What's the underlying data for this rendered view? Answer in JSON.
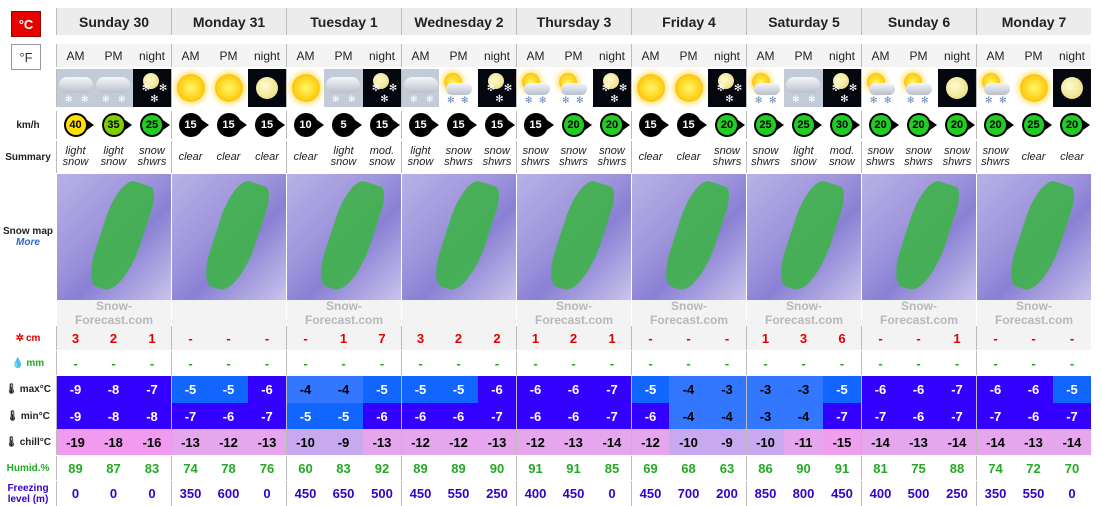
{
  "units": {
    "celsius": "°C",
    "fahrenheit": "°F"
  },
  "days": [
    {
      "name": "Sunday 30",
      "periods": [
        "AM",
        "PM",
        "night"
      ],
      "icons": [
        "cloud-snow",
        "cloud-snow",
        "moon-snow"
      ],
      "wind": [
        "40",
        "35",
        "25"
      ],
      "wind_colors": [
        "#ffe000",
        "#7fd000",
        "#22cc22"
      ],
      "summary": [
        "light snow",
        "light snow",
        "snow shwrs"
      ],
      "snow_cm": [
        "3",
        "2",
        "1"
      ],
      "rain_mm": [
        "-",
        "-",
        "-"
      ],
      "max_c": [
        "-9",
        "-8",
        "-7"
      ],
      "min_c": [
        "-9",
        "-8",
        "-8"
      ],
      "chill_c": [
        "-19",
        "-18",
        "-16"
      ],
      "humid": [
        "89",
        "87",
        "83"
      ],
      "freezing": [
        "0",
        "0",
        "0"
      ]
    },
    {
      "name": "Monday 31",
      "periods": [
        "AM",
        "PM",
        "night"
      ],
      "icons": [
        "sun",
        "sun",
        "moon"
      ],
      "wind": [
        "15",
        "15",
        "15"
      ],
      "wind_colors": [
        "#000",
        "#000",
        "#000"
      ],
      "summary": [
        "clear",
        "clear",
        "clear"
      ],
      "snow_cm": [
        "-",
        "-",
        "-"
      ],
      "rain_mm": [
        "-",
        "-",
        "-"
      ],
      "max_c": [
        "-5",
        "-5",
        "-6"
      ],
      "min_c": [
        "-7",
        "-6",
        "-7"
      ],
      "chill_c": [
        "-13",
        "-12",
        "-13"
      ],
      "humid": [
        "74",
        "78",
        "76"
      ],
      "freezing": [
        "350",
        "600",
        "0"
      ]
    },
    {
      "name": "Tuesday 1",
      "periods": [
        "AM",
        "PM",
        "night"
      ],
      "icons": [
        "sun",
        "cloud-snow",
        "moon-snow"
      ],
      "wind": [
        "10",
        "5",
        "15"
      ],
      "wind_colors": [
        "#000",
        "#000",
        "#000"
      ],
      "summary": [
        "clear",
        "light snow",
        "mod. snow"
      ],
      "snow_cm": [
        "-",
        "1",
        "7"
      ],
      "rain_mm": [
        "-",
        "-",
        "-"
      ],
      "max_c": [
        "-4",
        "-4",
        "-5"
      ],
      "min_c": [
        "-5",
        "-5",
        "-6"
      ],
      "chill_c": [
        "-10",
        "-9",
        "-13"
      ],
      "humid": [
        "60",
        "83",
        "92"
      ],
      "freezing": [
        "450",
        "650",
        "500"
      ]
    },
    {
      "name": "Wednesday 2",
      "periods": [
        "AM",
        "PM",
        "night"
      ],
      "icons": [
        "cloud-snow",
        "sun-snow",
        "moon-snow"
      ],
      "wind": [
        "15",
        "15",
        "15"
      ],
      "wind_colors": [
        "#000",
        "#000",
        "#000"
      ],
      "summary": [
        "light snow",
        "snow shwrs",
        "snow shwrs"
      ],
      "snow_cm": [
        "3",
        "2",
        "2"
      ],
      "rain_mm": [
        "-",
        "-",
        "-"
      ],
      "max_c": [
        "-5",
        "-5",
        "-6"
      ],
      "min_c": [
        "-6",
        "-6",
        "-7"
      ],
      "chill_c": [
        "-12",
        "-12",
        "-13"
      ],
      "humid": [
        "89",
        "89",
        "90"
      ],
      "freezing": [
        "450",
        "550",
        "250"
      ]
    },
    {
      "name": "Thursday 3",
      "periods": [
        "AM",
        "PM",
        "night"
      ],
      "icons": [
        "sun-snow",
        "sun-snow",
        "moon-snow"
      ],
      "wind": [
        "15",
        "20",
        "20"
      ],
      "wind_colors": [
        "#000",
        "#22cc22",
        "#22cc22"
      ],
      "summary": [
        "snow shwrs",
        "snow shwrs",
        "snow shwrs"
      ],
      "snow_cm": [
        "1",
        "2",
        "1"
      ],
      "rain_mm": [
        "-",
        "-",
        "-"
      ],
      "max_c": [
        "-6",
        "-6",
        "-7"
      ],
      "min_c": [
        "-6",
        "-6",
        "-7"
      ],
      "chill_c": [
        "-12",
        "-13",
        "-14"
      ],
      "humid": [
        "91",
        "91",
        "85"
      ],
      "freezing": [
        "400",
        "450",
        "0"
      ]
    },
    {
      "name": "Friday 4",
      "periods": [
        "AM",
        "PM",
        "night"
      ],
      "icons": [
        "sun",
        "sun",
        "moon-snow"
      ],
      "wind": [
        "15",
        "15",
        "20"
      ],
      "wind_colors": [
        "#000",
        "#000",
        "#22cc22"
      ],
      "summary": [
        "clear",
        "clear",
        "snow shwrs"
      ],
      "snow_cm": [
        "-",
        "-",
        "-"
      ],
      "rain_mm": [
        "-",
        "-",
        "-"
      ],
      "max_c": [
        "-5",
        "-4",
        "-3"
      ],
      "min_c": [
        "-6",
        "-4",
        "-4"
      ],
      "chill_c": [
        "-12",
        "-10",
        "-9"
      ],
      "humid": [
        "69",
        "68",
        "63"
      ],
      "freezing": [
        "450",
        "700",
        "200"
      ]
    },
    {
      "name": "Saturday 5",
      "periods": [
        "AM",
        "PM",
        "night"
      ],
      "icons": [
        "sun-snow",
        "cloud-snow",
        "moon-snow"
      ],
      "wind": [
        "25",
        "25",
        "30"
      ],
      "wind_colors": [
        "#22cc22",
        "#22cc22",
        "#22cc22"
      ],
      "summary": [
        "snow shwrs",
        "light snow",
        "mod. snow"
      ],
      "snow_cm": [
        "1",
        "3",
        "6"
      ],
      "rain_mm": [
        "-",
        "-",
        "-"
      ],
      "max_c": [
        "-3",
        "-3",
        "-5"
      ],
      "min_c": [
        "-3",
        "-4",
        "-7"
      ],
      "chill_c": [
        "-10",
        "-11",
        "-15"
      ],
      "humid": [
        "86",
        "90",
        "91"
      ],
      "freezing": [
        "850",
        "800",
        "450"
      ]
    },
    {
      "name": "Sunday 6",
      "periods": [
        "AM",
        "PM",
        "night"
      ],
      "icons": [
        "sun-snow",
        "sun-snow",
        "moon"
      ],
      "wind": [
        "20",
        "20",
        "20"
      ],
      "wind_colors": [
        "#22cc22",
        "#22cc22",
        "#22cc22"
      ],
      "summary": [
        "snow shwrs",
        "snow shwrs",
        "snow shwrs"
      ],
      "snow_cm": [
        "-",
        "-",
        "1"
      ],
      "rain_mm": [
        "-",
        "-",
        "-"
      ],
      "max_c": [
        "-6",
        "-6",
        "-7"
      ],
      "min_c": [
        "-7",
        "-6",
        "-7"
      ],
      "chill_c": [
        "-14",
        "-13",
        "-14"
      ],
      "humid": [
        "81",
        "75",
        "88"
      ],
      "freezing": [
        "400",
        "500",
        "250"
      ]
    },
    {
      "name": "Monday 7",
      "periods": [
        "AM",
        "PM",
        "night"
      ],
      "icons": [
        "sun-snow",
        "sun",
        "moon"
      ],
      "wind": [
        "20",
        "25",
        "20"
      ],
      "wind_colors": [
        "#22cc22",
        "#22cc22",
        "#22cc22"
      ],
      "summary": [
        "snow shwrs",
        "clear",
        "clear"
      ],
      "snow_cm": [
        "-",
        "-",
        "-"
      ],
      "rain_mm": [
        "-",
        "-",
        "-"
      ],
      "max_c": [
        "-6",
        "-6",
        "-5"
      ],
      "min_c": [
        "-7",
        "-6",
        "-7"
      ],
      "chill_c": [
        "-14",
        "-13",
        "-14"
      ],
      "humid": [
        "74",
        "72",
        "70"
      ],
      "freezing": [
        "350",
        "550",
        "0"
      ]
    }
  ],
  "labels": {
    "wind": "km/h",
    "summary": "Summary",
    "snow_map": "Snow map",
    "more": "More",
    "snow": "cm",
    "rain": "mm",
    "max": "max°C",
    "min": "min°C",
    "chill": "chill°C",
    "humid": "Humid.%",
    "freezing": "Freezing level (m)"
  },
  "watermark": "Snow-Forecast.com",
  "colors": {
    "snow_red": "#e00000",
    "rain_green": "#22aa22",
    "humid_green": "#22aa22",
    "freezing_blue": "#3300cc",
    "chill_scale": {
      "-9": "#c8a8ee",
      "-10": "#c8a8ee",
      "-11": "#e6a6ee",
      "-12": "#e6a6ee",
      "-13": "#e6a6ee",
      "-14": "#e6a6ee",
      "-15": "#ef9fee",
      "-16": "#f29af0",
      "-18": "#f29af0",
      "-19": "#f29af0"
    },
    "temp_scale": {
      "-3": "#3377ff",
      "-4": "#3377ff",
      "-5": "#1166ff",
      "-6": "#3300ff",
      "-7": "#3300ff",
      "-8": "#3300ff",
      "-9": "#3300ff"
    }
  }
}
